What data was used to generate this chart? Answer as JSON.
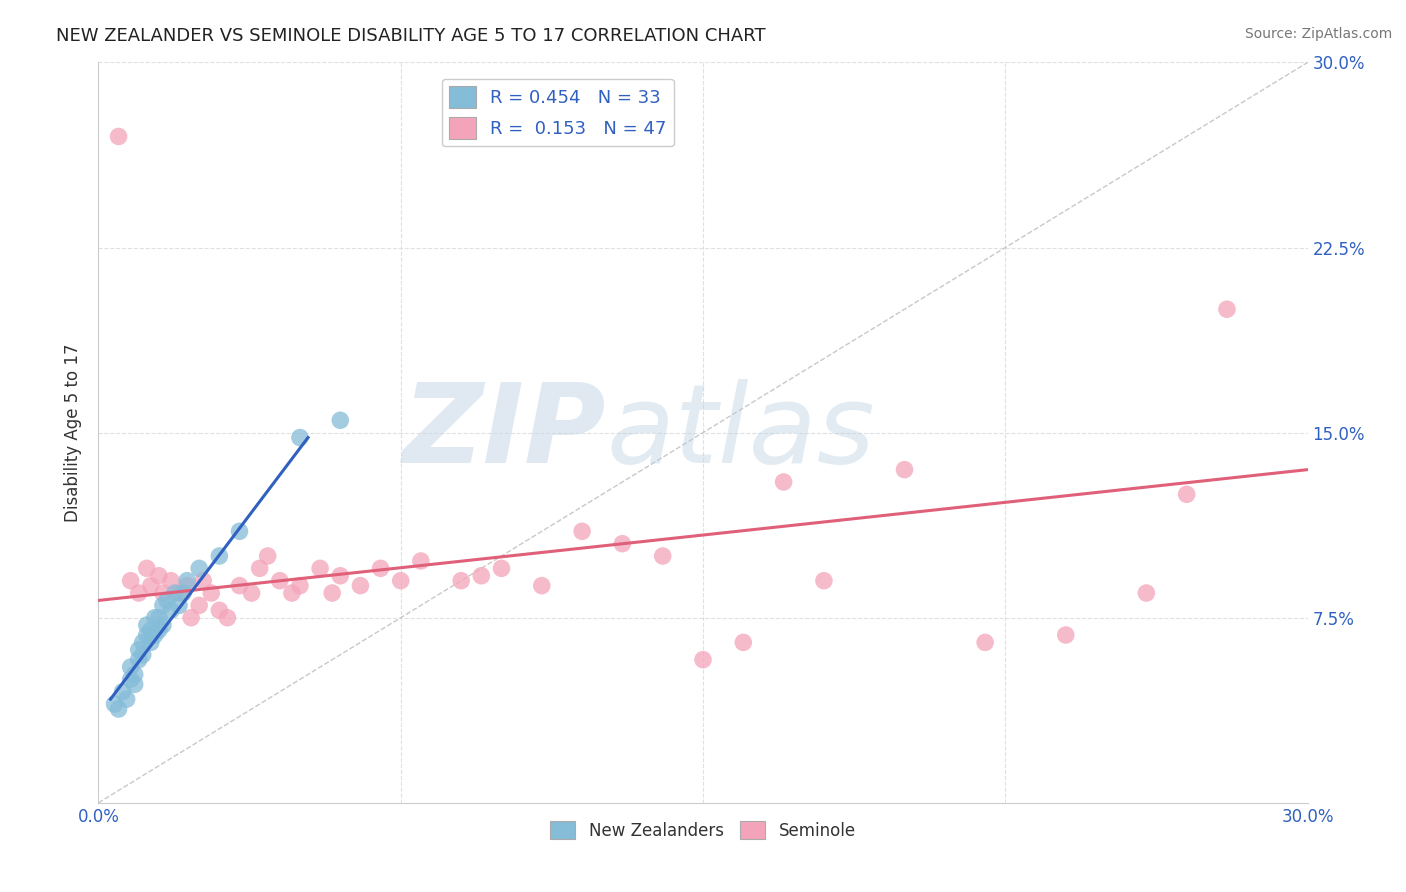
{
  "title": "NEW ZEALANDER VS SEMINOLE DISABILITY AGE 5 TO 17 CORRELATION CHART",
  "source": "Source: ZipAtlas.com",
  "ylabel": "Disability Age 5 to 17",
  "xlim": [
    0.0,
    0.3
  ],
  "ylim": [
    0.0,
    0.3
  ],
  "xticks": [
    0.0,
    0.075,
    0.15,
    0.225,
    0.3
  ],
  "yticks": [
    0.0,
    0.075,
    0.15,
    0.225,
    0.3
  ],
  "right_ytick_labels": [
    "",
    "7.5%",
    "15.0%",
    "22.5%",
    "30.0%"
  ],
  "xtick_labels": [
    "0.0%",
    "",
    "",
    "",
    "30.0%"
  ],
  "blue_R": 0.454,
  "blue_N": 33,
  "pink_R": 0.153,
  "pink_N": 47,
  "blue_color": "#85bcd8",
  "pink_color": "#f4a4ba",
  "blue_line_color": "#3060c0",
  "pink_line_color": "#e0607a",
  "watermark_zip": "ZIP",
  "watermark_atlas": "atlas",
  "background_color": "#ffffff",
  "grid_color": "#e0e0e0",
  "blue_scatter_x": [
    0.004,
    0.005,
    0.006,
    0.007,
    0.008,
    0.008,
    0.009,
    0.009,
    0.01,
    0.01,
    0.011,
    0.011,
    0.012,
    0.012,
    0.013,
    0.013,
    0.014,
    0.014,
    0.015,
    0.015,
    0.016,
    0.016,
    0.017,
    0.018,
    0.019,
    0.02,
    0.021,
    0.022,
    0.025,
    0.03,
    0.035,
    0.05,
    0.06
  ],
  "blue_scatter_y": [
    0.04,
    0.038,
    0.045,
    0.042,
    0.05,
    0.055,
    0.048,
    0.052,
    0.058,
    0.062,
    0.06,
    0.065,
    0.068,
    0.072,
    0.065,
    0.07,
    0.068,
    0.075,
    0.07,
    0.075,
    0.072,
    0.08,
    0.082,
    0.078,
    0.085,
    0.08,
    0.085,
    0.09,
    0.095,
    0.1,
    0.11,
    0.148,
    0.155
  ],
  "pink_scatter_x": [
    0.005,
    0.008,
    0.01,
    0.012,
    0.013,
    0.015,
    0.016,
    0.018,
    0.02,
    0.022,
    0.023,
    0.025,
    0.026,
    0.028,
    0.03,
    0.032,
    0.035,
    0.038,
    0.04,
    0.042,
    0.045,
    0.048,
    0.05,
    0.055,
    0.058,
    0.06,
    0.065,
    0.07,
    0.075,
    0.08,
    0.09,
    0.095,
    0.1,
    0.11,
    0.12,
    0.13,
    0.14,
    0.15,
    0.16,
    0.17,
    0.18,
    0.2,
    0.22,
    0.24,
    0.26,
    0.27,
    0.28
  ],
  "pink_scatter_y": [
    0.27,
    0.09,
    0.085,
    0.095,
    0.088,
    0.092,
    0.085,
    0.09,
    0.085,
    0.088,
    0.075,
    0.08,
    0.09,
    0.085,
    0.078,
    0.075,
    0.088,
    0.085,
    0.095,
    0.1,
    0.09,
    0.085,
    0.088,
    0.095,
    0.085,
    0.092,
    0.088,
    0.095,
    0.09,
    0.098,
    0.09,
    0.092,
    0.095,
    0.088,
    0.11,
    0.105,
    0.1,
    0.058,
    0.065,
    0.13,
    0.09,
    0.135,
    0.065,
    0.068,
    0.085,
    0.125,
    0.2
  ],
  "blue_line_x": [
    0.003,
    0.052
  ],
  "blue_line_y": [
    0.042,
    0.148
  ],
  "pink_line_x": [
    0.0,
    0.3
  ],
  "pink_line_y": [
    0.082,
    0.135
  ],
  "diag_line_x": [
    0.0,
    0.3
  ],
  "diag_line_y": [
    0.0,
    0.3
  ]
}
